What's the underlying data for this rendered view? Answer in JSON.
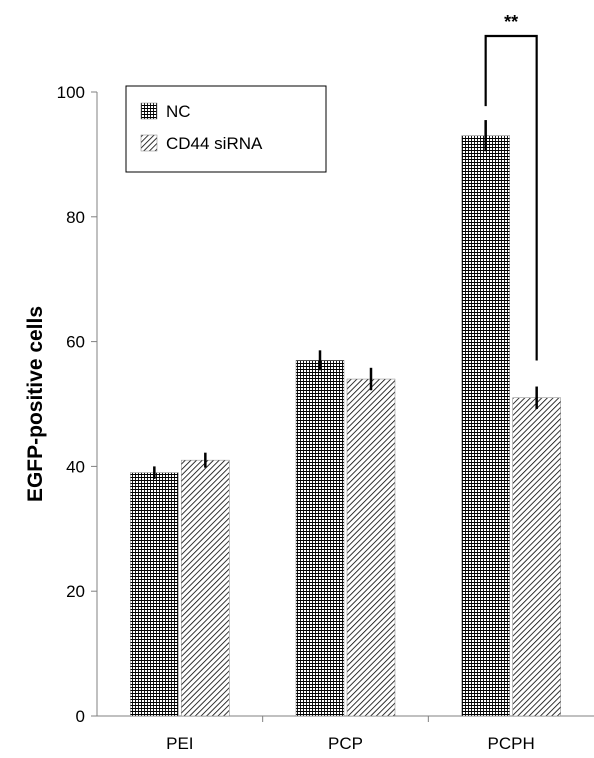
{
  "chart_data": {
    "type": "bar",
    "categories": [
      "PEI",
      "PCP",
      "PCPH"
    ],
    "series": [
      {
        "name": "NC",
        "values": [
          39,
          57,
          93
        ],
        "errors": [
          1.0,
          1.6,
          2.5
        ],
        "pattern": "grid"
      },
      {
        "name": "CD44 siRNA",
        "values": [
          41,
          54,
          51
        ],
        "errors": [
          1.2,
          1.8,
          1.8
        ],
        "pattern": "diagonal"
      }
    ],
    "xlabel": "",
    "ylabel": "EGFP-positive cells",
    "ylim": [
      0,
      100
    ],
    "yticks": [
      0,
      20,
      40,
      60,
      80,
      100
    ],
    "grid": false,
    "legend_position": "top-left",
    "annotations": [
      {
        "text": "**",
        "category": "PCPH",
        "between": [
          "NC",
          "CD44 siRNA"
        ]
      }
    ],
    "colors": {
      "bar_fill": "#ffffff",
      "pattern": "#000000",
      "axis": "#808080"
    }
  }
}
